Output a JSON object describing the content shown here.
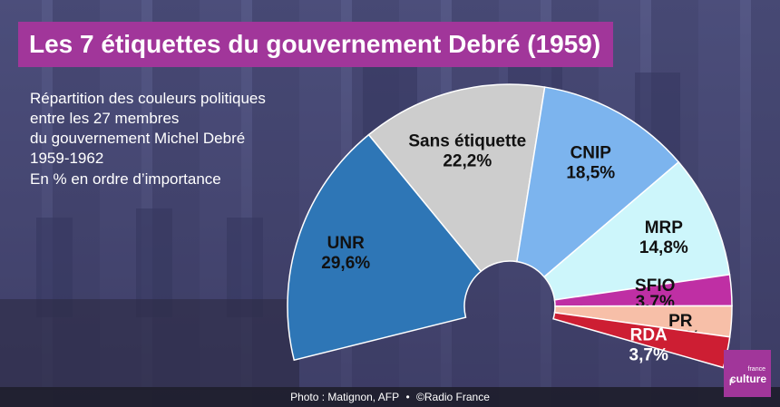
{
  "header": {
    "title": "Les 7 étiquettes du gouvernement Debré (1959)"
  },
  "subtitle": {
    "lines": [
      "Répartition des couleurs politiques",
      "entre les 27 membres",
      "du gouvernement Michel Debré",
      "1959-1962"
    ],
    "note": "En % en ordre d’importance"
  },
  "footer": {
    "credit_photo": "Photo : Matignon, AFP",
    "separator": "•",
    "credit_radio": "©Radio France"
  },
  "logo": {
    "small_text": "france",
    "big_text": "culture",
    "mark": "F"
  },
  "colors": {
    "title_bg": "#a1369a",
    "UNR": "#2e76b6",
    "Sans étiquette": "#cdcdcd",
    "CNIP": "#7cb4ee",
    "MRP": "#cdf6fb",
    "SFIO": "#bf2fa4",
    "PR": "#f7bfa8",
    "RDA": "#cd1e33"
  },
  "chart_data": {
    "type": "pie",
    "subtype": "half-donut (hemicycle)",
    "categories": [
      "UNR",
      "Sans étiquette",
      "CNIP",
      "MRP",
      "SFIO",
      "PR",
      "RDA"
    ],
    "values": [
      29.6,
      22.2,
      18.5,
      14.8,
      3.7,
      3.7,
      3.7
    ],
    "value_labels": [
      "29,6%",
      "22,2%",
      "18,5%",
      "14,8%",
      "3,7%",
      "3,7%",
      "3,7%"
    ],
    "unit": "%"
  }
}
